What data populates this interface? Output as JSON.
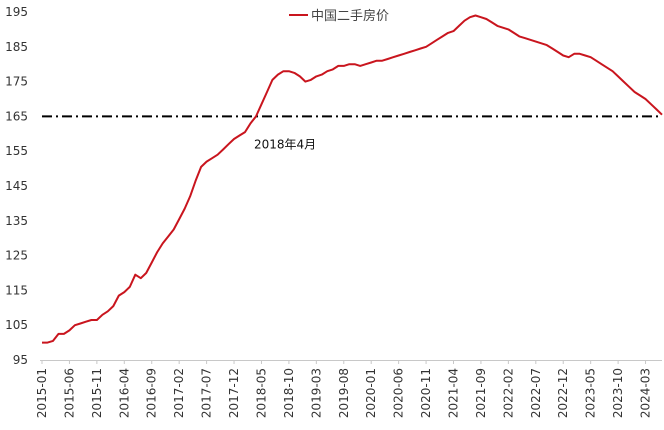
{
  "chart_data": {
    "type": "line",
    "title": "",
    "xlabel": "",
    "ylabel": "",
    "ylim": [
      95,
      195
    ],
    "yticks": [
      95,
      105,
      115,
      125,
      135,
      145,
      155,
      165,
      175,
      185,
      195
    ],
    "x_tick_labels": [
      "2015-01",
      "2015-06",
      "2015-11",
      "2016-04",
      "2016-09",
      "2017-02",
      "2017-07",
      "2017-12",
      "2018-05",
      "2018-10",
      "2019-03",
      "2019-08",
      "2020-01",
      "2020-06",
      "2020-11",
      "2021-04",
      "2021-09",
      "2022-02",
      "2022-07",
      "2022-12",
      "2023-05",
      "2023-10",
      "2024-03"
    ],
    "x_range": [
      "2015-01",
      "2024-06"
    ],
    "grid": false,
    "legend_position": "top-center",
    "series": [
      {
        "name": "中国二手房价",
        "color": "#c9151e",
        "points": [
          [
            "2015-01",
            100.0
          ],
          [
            "2015-02",
            100.0
          ],
          [
            "2015-03",
            100.5
          ],
          [
            "2015-04",
            102.5
          ],
          [
            "2015-05",
            102.5
          ],
          [
            "2015-06",
            103.5
          ],
          [
            "2015-07",
            105.0
          ],
          [
            "2015-08",
            105.5
          ],
          [
            "2015-09",
            106.0
          ],
          [
            "2015-10",
            106.5
          ],
          [
            "2015-11",
            106.5
          ],
          [
            "2015-12",
            108.0
          ],
          [
            "2016-01",
            109.0
          ],
          [
            "2016-02",
            110.5
          ],
          [
            "2016-03",
            113.5
          ],
          [
            "2016-04",
            114.5
          ],
          [
            "2016-05",
            116.0
          ],
          [
            "2016-06",
            119.5
          ],
          [
            "2016-07",
            118.5
          ],
          [
            "2016-08",
            120.0
          ],
          [
            "2016-09",
            123.0
          ],
          [
            "2016-10",
            126.0
          ],
          [
            "2016-11",
            128.5
          ],
          [
            "2016-12",
            130.5
          ],
          [
            "2017-01",
            132.5
          ],
          [
            "2017-02",
            135.5
          ],
          [
            "2017-03",
            138.5
          ],
          [
            "2017-04",
            142.0
          ],
          [
            "2017-05",
            146.5
          ],
          [
            "2017-06",
            150.5
          ],
          [
            "2017-07",
            152.0
          ],
          [
            "2017-08",
            153.0
          ],
          [
            "2017-09",
            154.0
          ],
          [
            "2017-10",
            155.5
          ],
          [
            "2017-11",
            157.0
          ],
          [
            "2017-12",
            158.5
          ],
          [
            "2018-01",
            159.5
          ],
          [
            "2018-02",
            160.5
          ],
          [
            "2018-03",
            163.0
          ],
          [
            "2018-04",
            165.0
          ],
          [
            "2018-05",
            168.5
          ],
          [
            "2018-06",
            172.0
          ],
          [
            "2018-07",
            175.5
          ],
          [
            "2018-08",
            177.0
          ],
          [
            "2018-09",
            178.0
          ],
          [
            "2018-10",
            178.0
          ],
          [
            "2018-11",
            177.5
          ],
          [
            "2018-12",
            176.5
          ],
          [
            "2019-01",
            175.0
          ],
          [
            "2019-02",
            175.5
          ],
          [
            "2019-03",
            176.5
          ],
          [
            "2019-04",
            177.0
          ],
          [
            "2019-05",
            178.0
          ],
          [
            "2019-06",
            178.5
          ],
          [
            "2019-07",
            179.5
          ],
          [
            "2019-08",
            179.5
          ],
          [
            "2019-09",
            180.0
          ],
          [
            "2019-10",
            180.0
          ],
          [
            "2019-11",
            179.5
          ],
          [
            "2019-12",
            180.0
          ],
          [
            "2020-01",
            180.5
          ],
          [
            "2020-02",
            181.0
          ],
          [
            "2020-03",
            181.0
          ],
          [
            "2020-04",
            181.5
          ],
          [
            "2020-05",
            182.0
          ],
          [
            "2020-06",
            182.5
          ],
          [
            "2020-07",
            183.0
          ],
          [
            "2020-08",
            183.5
          ],
          [
            "2020-09",
            184.0
          ],
          [
            "2020-10",
            184.5
          ],
          [
            "2020-11",
            185.0
          ],
          [
            "2020-12",
            186.0
          ],
          [
            "2021-01",
            187.0
          ],
          [
            "2021-02",
            188.0
          ],
          [
            "2021-03",
            189.0
          ],
          [
            "2021-04",
            189.5
          ],
          [
            "2021-05",
            191.0
          ],
          [
            "2021-06",
            192.5
          ],
          [
            "2021-07",
            193.5
          ],
          [
            "2021-08",
            194.0
          ],
          [
            "2021-09",
            193.5
          ],
          [
            "2021-10",
            193.0
          ],
          [
            "2021-11",
            192.0
          ],
          [
            "2021-12",
            191.0
          ],
          [
            "2022-01",
            190.5
          ],
          [
            "2022-02",
            190.0
          ],
          [
            "2022-03",
            189.0
          ],
          [
            "2022-04",
            188.0
          ],
          [
            "2022-05",
            187.5
          ],
          [
            "2022-06",
            187.0
          ],
          [
            "2022-07",
            186.5
          ],
          [
            "2022-08",
            186.0
          ],
          [
            "2022-09",
            185.5
          ],
          [
            "2022-10",
            184.5
          ],
          [
            "2022-11",
            183.5
          ],
          [
            "2022-12",
            182.5
          ],
          [
            "2023-01",
            182.0
          ],
          [
            "2023-02",
            183.0
          ],
          [
            "2023-03",
            183.0
          ],
          [
            "2023-04",
            182.5
          ],
          [
            "2023-05",
            182.0
          ],
          [
            "2023-06",
            181.0
          ],
          [
            "2023-07",
            180.0
          ],
          [
            "2023-08",
            179.0
          ],
          [
            "2023-09",
            178.0
          ],
          [
            "2023-10",
            176.5
          ],
          [
            "2023-11",
            175.0
          ],
          [
            "2023-12",
            173.5
          ],
          [
            "2024-01",
            172.0
          ],
          [
            "2024-02",
            171.0
          ],
          [
            "2024-03",
            170.0
          ],
          [
            "2024-04",
            168.5
          ],
          [
            "2024-05",
            167.0
          ],
          [
            "2024-06",
            165.5
          ]
        ]
      }
    ],
    "reference_line": {
      "value": 165,
      "style": "dash-dot",
      "color": "#000000"
    },
    "annotation": {
      "text": "2018年4月",
      "x": "2018-04",
      "y": 165
    }
  }
}
